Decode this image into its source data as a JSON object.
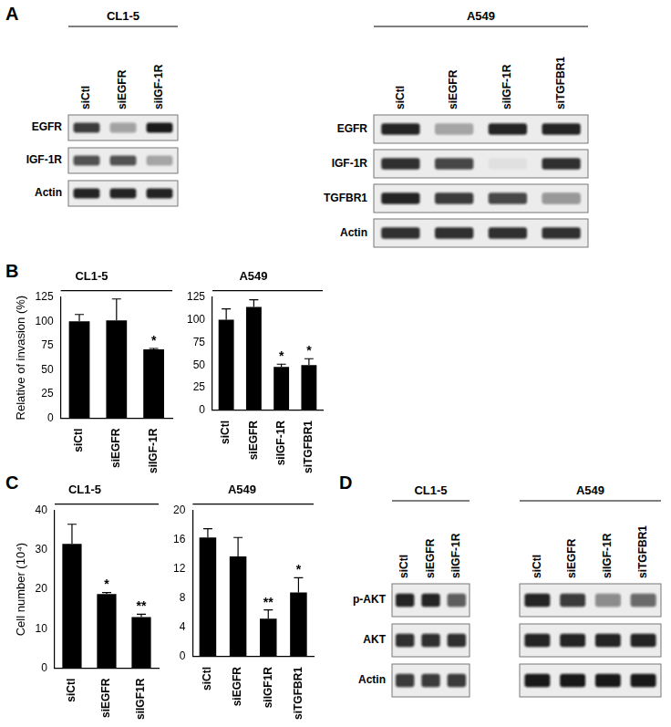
{
  "figure": {
    "panel_labels": [
      "A",
      "B",
      "C",
      "D"
    ],
    "blots": [
      {
        "title": "CL1-5",
        "lanes": [
          "siCtl",
          "siEGFR",
          "siIGF-1R"
        ],
        "rows": [
          {
            "label": "EGFR",
            "levels": [
              0.8,
              0.35,
              0.95
            ]
          },
          {
            "label": "IGF-1R",
            "levels": [
              0.7,
              0.7,
              0.3
            ]
          },
          {
            "label": "Actin",
            "levels": [
              0.9,
              0.9,
              0.9
            ]
          }
        ]
      },
      {
        "title": "A549",
        "lanes": [
          "siCtl",
          "siEGFR",
          "siIGF-1R",
          "siTGFBR1"
        ],
        "rows": [
          {
            "label": "EGFR",
            "levels": [
              0.9,
              0.3,
              0.9,
              0.9
            ]
          },
          {
            "label": "IGF-1R",
            "levels": [
              0.85,
              0.75,
              0.05,
              0.85
            ]
          },
          {
            "label": "TGFBR1",
            "levels": [
              0.9,
              0.8,
              0.75,
              0.4
            ]
          },
          {
            "label": "Actin",
            "levels": [
              0.85,
              0.85,
              0.85,
              0.85
            ]
          }
        ]
      },
      {
        "title": "CL1-5",
        "lanes": [
          "siCtl",
          "siEGFR",
          "siIGF-1R"
        ],
        "rows": [
          {
            "label": "p-AKT",
            "levels": [
              0.9,
              0.9,
              0.65
            ]
          },
          {
            "label": "AKT",
            "levels": [
              0.85,
              0.85,
              0.85
            ]
          },
          {
            "label": "Actin",
            "levels": [
              0.8,
              0.8,
              0.8
            ]
          }
        ]
      },
      {
        "title": "A549",
        "lanes": [
          "siCtl",
          "siEGFR",
          "siIGF-1R",
          "siTGFBR1"
        ],
        "rows": [
          {
            "levels": [
              0.9,
              0.8,
              0.45,
              0.6
            ]
          },
          {
            "levels": [
              0.9,
              0.9,
              0.9,
              0.9
            ]
          },
          {
            "levels": [
              0.95,
              0.95,
              0.95,
              0.95
            ]
          }
        ]
      }
    ]
  },
  "chart_data": [
    {
      "type": "bar",
      "title": "CL1-5",
      "y_label": "Relative of invasion (%)",
      "categories": [
        "siCtl",
        "siEGFR",
        "siIGF-1R"
      ],
      "values": [
        100,
        101,
        71
      ],
      "errors": [
        7,
        22,
        1
      ],
      "significance": [
        null,
        null,
        "*"
      ],
      "color": "#000000",
      "ylim": [
        0,
        125
      ],
      "yticks": [
        0,
        25,
        50,
        75,
        100,
        125
      ],
      "grid": false
    },
    {
      "type": "bar",
      "title": "A549",
      "categories": [
        "siCtl",
        "siEGFR",
        "siIGF-1R",
        "siTGFBR1"
      ],
      "values": [
        100,
        114,
        48,
        50
      ],
      "errors": [
        12,
        8,
        3,
        7
      ],
      "significance": [
        null,
        null,
        "*",
        "*"
      ],
      "color": "#000000",
      "ylim": [
        0,
        125
      ],
      "yticks": [
        0,
        25,
        50,
        75,
        100,
        125
      ],
      "grid": false
    },
    {
      "type": "bar",
      "title": "CL1-5",
      "y_label": "Cell number (10⁴)",
      "categories": [
        "siCtl",
        "siEGFR",
        "siIGF1R"
      ],
      "values": [
        31.5,
        18.8,
        13
      ],
      "errors": [
        5,
        0.4,
        0.7
      ],
      "significance": [
        null,
        "*",
        "**"
      ],
      "color": "#000000",
      "ylim": [
        0,
        40
      ],
      "yticks": [
        0,
        10,
        20,
        30,
        40
      ],
      "grid": false
    },
    {
      "type": "bar",
      "title": "A549",
      "categories": [
        "siCtl",
        "siEGFR",
        "siIGF1R",
        "siTGFBR1"
      ],
      "values": [
        16.3,
        13.7,
        5.2,
        8.8
      ],
      "errors": [
        1.2,
        2.6,
        1.2,
        2.0
      ],
      "significance": [
        null,
        null,
        "**",
        "*"
      ],
      "color": "#000000",
      "ylim": [
        0,
        20
      ],
      "yticks": [
        0,
        4,
        8,
        12,
        16,
        20
      ],
      "grid": false
    }
  ]
}
